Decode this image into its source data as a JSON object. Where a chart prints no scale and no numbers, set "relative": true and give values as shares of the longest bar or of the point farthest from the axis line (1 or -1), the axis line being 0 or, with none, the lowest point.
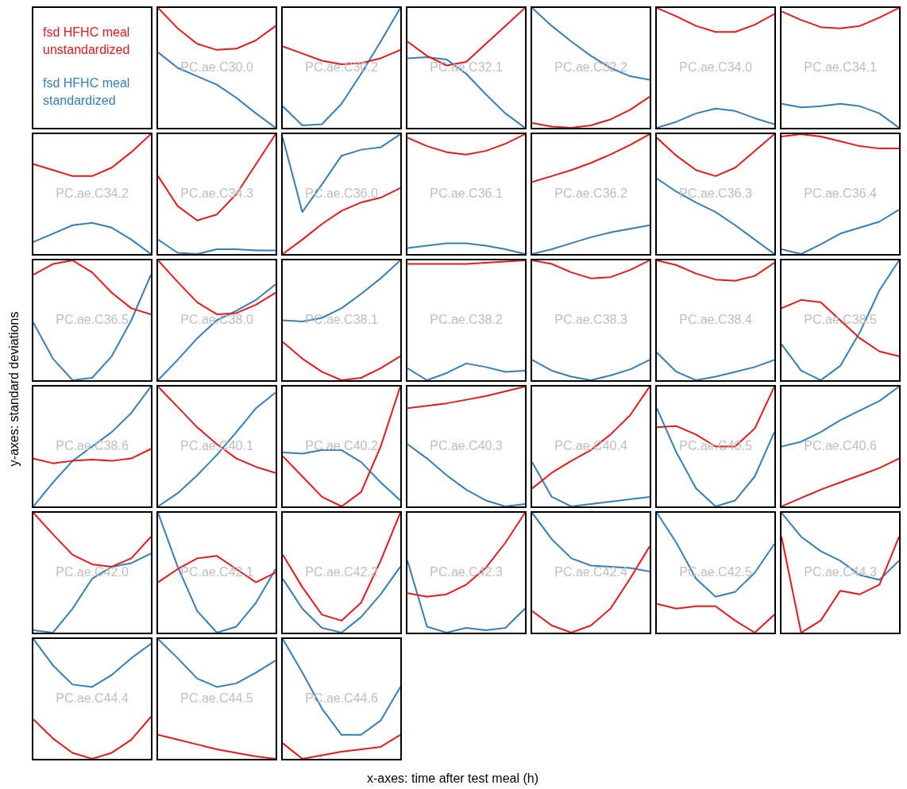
{
  "chart_data": [
    {
      "type": "line",
      "title": "PC.ae.C30.0",
      "relative": true,
      "legend": "left",
      "categories": [
        null,
        null,
        null,
        null,
        null,
        null,
        null
      ],
      "series": [
        {
          "name": "fsd HFHC meal\nunstandardized",
          "color": "#e41a1c",
          "values": [
            1,
            0.83,
            0.7,
            0.65,
            0.66,
            0.73,
            0.85
          ]
        },
        {
          "name": "fsd HFHC meal\nstandardized",
          "color": "#377eb8",
          "values": [
            0.63,
            0.5,
            0.43,
            0.36,
            0.25,
            0.12,
            0
          ]
        }
      ]
    },
    {
      "type": "line",
      "title": "PC.ae.C30.2",
      "relative": true,
      "categories": [
        null,
        null,
        null,
        null,
        null,
        null,
        null
      ],
      "series": [
        {
          "color": "#e41a1c",
          "values": [
            0.68,
            0.62,
            0.56,
            0.53,
            0.54,
            0.58,
            0.65
          ]
        },
        {
          "color": "#377eb8",
          "values": [
            0.18,
            0.02,
            0.03,
            0.2,
            0.45,
            0.72,
            1
          ]
        }
      ]
    },
    {
      "type": "line",
      "title": "PC.ae.C32.1",
      "relative": true,
      "categories": [
        null,
        null,
        null,
        null,
        null,
        null,
        null
      ],
      "series": [
        {
          "color": "#e41a1c",
          "values": [
            0.72,
            0.6,
            0.52,
            0.55,
            0.7,
            0.85,
            1
          ]
        },
        {
          "color": "#377eb8",
          "values": [
            0.58,
            0.59,
            0.57,
            0.45,
            0.28,
            0.12,
            0
          ]
        }
      ]
    },
    {
      "type": "line",
      "title": "PC.ae.C32.2",
      "relative": true,
      "categories": [
        null,
        null,
        null,
        null,
        null,
        null,
        null
      ],
      "series": [
        {
          "color": "#e41a1c",
          "values": [
            0.04,
            0.01,
            0,
            0.02,
            0.07,
            0.15,
            0.26
          ]
        },
        {
          "color": "#377eb8",
          "values": [
            1,
            0.85,
            0.72,
            0.6,
            0.5,
            0.43,
            0.4
          ]
        }
      ]
    },
    {
      "type": "line",
      "title": "PC.ae.C34.0",
      "relative": true,
      "categories": [
        null,
        null,
        null,
        null,
        null,
        null,
        null
      ],
      "series": [
        {
          "color": "#e41a1c",
          "values": [
            1,
            0.93,
            0.85,
            0.8,
            0.8,
            0.86,
            0.95
          ]
        },
        {
          "color": "#377eb8",
          "values": [
            0,
            0.05,
            0.12,
            0.16,
            0.14,
            0.08,
            0.03
          ]
        }
      ]
    },
    {
      "type": "line",
      "title": "PC.ae.C34.1",
      "relative": true,
      "categories": [
        null,
        null,
        null,
        null,
        null,
        null,
        null
      ],
      "series": [
        {
          "color": "#e41a1c",
          "values": [
            0.97,
            0.9,
            0.84,
            0.83,
            0.85,
            0.92,
            1
          ]
        },
        {
          "color": "#377eb8",
          "values": [
            0.2,
            0.17,
            0.18,
            0.2,
            0.18,
            0.12,
            0
          ]
        }
      ]
    },
    {
      "type": "line",
      "title": "PC.ae.C34.2",
      "relative": true,
      "categories": [
        null,
        null,
        null,
        null,
        null,
        null,
        null
      ],
      "series": [
        {
          "color": "#e41a1c",
          "values": [
            0.75,
            0.7,
            0.65,
            0.65,
            0.72,
            0.85,
            1
          ]
        },
        {
          "color": "#377eb8",
          "values": [
            0.1,
            0.17,
            0.24,
            0.26,
            0.22,
            0.12,
            0
          ]
        }
      ]
    },
    {
      "type": "line",
      "title": "PC.ae.C34.3",
      "relative": true,
      "categories": [
        null,
        null,
        null,
        null,
        null,
        null,
        null
      ],
      "series": [
        {
          "color": "#e41a1c",
          "values": [
            0.65,
            0.4,
            0.28,
            0.33,
            0.5,
            0.75,
            1
          ]
        },
        {
          "color": "#377eb8",
          "values": [
            0.12,
            0.01,
            0,
            0.04,
            0.04,
            0.03,
            0.03
          ]
        }
      ]
    },
    {
      "type": "line",
      "title": "PC.ae.C36.0",
      "relative": true,
      "categories": [
        null,
        null,
        null,
        null,
        null,
        null,
        null
      ],
      "series": [
        {
          "color": "#e41a1c",
          "values": [
            0,
            0.12,
            0.25,
            0.36,
            0.43,
            0.47,
            0.55
          ]
        },
        {
          "color": "#377eb8",
          "values": [
            0.97,
            0.35,
            0.58,
            0.82,
            0.87,
            0.89,
            1
          ]
        }
      ]
    },
    {
      "type": "line",
      "title": "PC.ae.C36.1",
      "relative": true,
      "categories": [
        null,
        null,
        null,
        null,
        null,
        null,
        null
      ],
      "series": [
        {
          "color": "#e41a1c",
          "values": [
            0.97,
            0.9,
            0.85,
            0.83,
            0.86,
            0.92,
            1
          ]
        },
        {
          "color": "#377eb8",
          "values": [
            0.05,
            0.07,
            0.09,
            0.09,
            0.07,
            0.04,
            0
          ]
        }
      ]
    },
    {
      "type": "line",
      "title": "PC.ae.C36.2",
      "relative": true,
      "categories": [
        null,
        null,
        null,
        null,
        null,
        null,
        null
      ],
      "series": [
        {
          "color": "#e41a1c",
          "values": [
            0.6,
            0.65,
            0.7,
            0.76,
            0.83,
            0.91,
            1
          ]
        },
        {
          "color": "#377eb8",
          "values": [
            0,
            0.04,
            0.09,
            0.14,
            0.18,
            0.21,
            0.24
          ]
        }
      ]
    },
    {
      "type": "line",
      "title": "PC.ae.C36.3",
      "relative": true,
      "categories": [
        null,
        null,
        null,
        null,
        null,
        null,
        null
      ],
      "series": [
        {
          "color": "#e41a1c",
          "values": [
            0.97,
            0.82,
            0.7,
            0.65,
            0.72,
            0.86,
            1
          ]
        },
        {
          "color": "#377eb8",
          "values": [
            0.63,
            0.52,
            0.43,
            0.35,
            0.24,
            0.12,
            0
          ]
        }
      ]
    },
    {
      "type": "line",
      "title": "PC.ae.C36.4",
      "relative": true,
      "categories": [
        null,
        null,
        null,
        null,
        null,
        null,
        null
      ],
      "series": [
        {
          "color": "#e41a1c",
          "values": [
            0.98,
            1,
            0.98,
            0.94,
            0.9,
            0.88,
            0.88
          ]
        },
        {
          "color": "#377eb8",
          "values": [
            0.04,
            0,
            0.08,
            0.17,
            0.22,
            0.27,
            0.37
          ]
        }
      ]
    },
    {
      "type": "line",
      "title": "PC.ae.C36.5",
      "relative": true,
      "categories": [
        null,
        null,
        null,
        null,
        null,
        null,
        null
      ],
      "series": [
        {
          "color": "#e41a1c",
          "values": [
            0.88,
            0.97,
            1,
            0.9,
            0.73,
            0.6,
            0.55
          ]
        },
        {
          "color": "#377eb8",
          "values": [
            0.48,
            0.18,
            0,
            0.02,
            0.2,
            0.5,
            0.88
          ]
        }
      ]
    },
    {
      "type": "line",
      "title": "PC.ae.C38.0",
      "relative": true,
      "categories": [
        null,
        null,
        null,
        null,
        null,
        null,
        null
      ],
      "series": [
        {
          "color": "#e41a1c",
          "values": [
            1,
            0.82,
            0.65,
            0.55,
            0.56,
            0.63,
            0.73
          ]
        },
        {
          "color": "#377eb8",
          "values": [
            0,
            0.17,
            0.35,
            0.5,
            0.58,
            0.67,
            0.8
          ]
        }
      ]
    },
    {
      "type": "line",
      "title": "PC.ae.C38.1",
      "relative": true,
      "categories": [
        null,
        null,
        null,
        null,
        null,
        null,
        null
      ],
      "series": [
        {
          "color": "#e41a1c",
          "values": [
            0.32,
            0.18,
            0.07,
            0,
            0.02,
            0.1,
            0.2
          ]
        },
        {
          "color": "#377eb8",
          "values": [
            0.5,
            0.49,
            0.52,
            0.6,
            0.72,
            0.85,
            1
          ]
        }
      ]
    },
    {
      "type": "line",
      "title": "PC.ae.C38.2",
      "relative": true,
      "categories": [
        null,
        null,
        null,
        null,
        null,
        null,
        null
      ],
      "series": [
        {
          "color": "#e41a1c",
          "values": [
            0.97,
            0.97,
            0.97,
            0.97,
            0.98,
            0.99,
            1
          ]
        },
        {
          "color": "#377eb8",
          "values": [
            0.1,
            0,
            0.06,
            0.14,
            0.11,
            0.07,
            0.08
          ]
        }
      ]
    },
    {
      "type": "line",
      "title": "PC.ae.C38.3",
      "relative": true,
      "categories": [
        null,
        null,
        null,
        null,
        null,
        null,
        null
      ],
      "series": [
        {
          "color": "#e41a1c",
          "values": [
            1,
            0.97,
            0.9,
            0.85,
            0.86,
            0.92,
            1
          ]
        },
        {
          "color": "#377eb8",
          "values": [
            0.17,
            0.08,
            0.03,
            0,
            0.04,
            0.09,
            0.17
          ]
        }
      ]
    },
    {
      "type": "line",
      "title": "PC.ae.C38.4",
      "relative": true,
      "categories": [
        null,
        null,
        null,
        null,
        null,
        null,
        null
      ],
      "series": [
        {
          "color": "#e41a1c",
          "values": [
            1,
            0.96,
            0.89,
            0.84,
            0.83,
            0.87,
            0.98
          ]
        },
        {
          "color": "#377eb8",
          "values": [
            0.23,
            0.07,
            0,
            0.03,
            0.07,
            0.11,
            0.17
          ]
        }
      ]
    },
    {
      "type": "line",
      "title": "PC.ae.C38.5",
      "relative": true,
      "categories": [
        null,
        null,
        null,
        null,
        null,
        null,
        null
      ],
      "series": [
        {
          "color": "#e41a1c",
          "values": [
            0.6,
            0.67,
            0.65,
            0.5,
            0.35,
            0.24,
            0.2
          ]
        },
        {
          "color": "#377eb8",
          "values": [
            0.3,
            0.08,
            0,
            0.12,
            0.4,
            0.75,
            1
          ]
        }
      ]
    },
    {
      "type": "line",
      "title": "PC.ae.C38.6",
      "relative": true,
      "categories": [
        null,
        null,
        null,
        null,
        null,
        null,
        null
      ],
      "series": [
        {
          "color": "#e41a1c",
          "values": [
            0.4,
            0.36,
            0.38,
            0.39,
            0.38,
            0.4,
            0.48
          ]
        },
        {
          "color": "#377eb8",
          "values": [
            0,
            0.2,
            0.38,
            0.5,
            0.62,
            0.78,
            1
          ]
        }
      ]
    },
    {
      "type": "line",
      "title": "PC.ae.C40.1",
      "relative": true,
      "categories": [
        null,
        null,
        null,
        null,
        null,
        null,
        null
      ],
      "series": [
        {
          "color": "#e41a1c",
          "values": [
            1,
            0.83,
            0.66,
            0.52,
            0.4,
            0.33,
            0.28
          ]
        },
        {
          "color": "#377eb8",
          "values": [
            0,
            0.11,
            0.26,
            0.43,
            0.62,
            0.82,
            0.95
          ]
        }
      ]
    },
    {
      "type": "line",
      "title": "PC.ae.C40.2",
      "relative": true,
      "categories": [
        null,
        null,
        null,
        null,
        null,
        null,
        null
      ],
      "series": [
        {
          "color": "#e41a1c",
          "values": [
            0.42,
            0.25,
            0.08,
            0,
            0.12,
            0.5,
            1
          ]
        },
        {
          "color": "#377eb8",
          "values": [
            0.45,
            0.44,
            0.47,
            0.47,
            0.37,
            0.2,
            0.05
          ]
        }
      ]
    },
    {
      "type": "line",
      "title": "PC.ae.C40.3",
      "relative": true,
      "categories": [
        null,
        null,
        null,
        null,
        null,
        null,
        null
      ],
      "series": [
        {
          "color": "#e41a1c",
          "values": [
            0.82,
            0.84,
            0.86,
            0.89,
            0.92,
            0.96,
            1
          ]
        },
        {
          "color": "#377eb8",
          "values": [
            0.52,
            0.4,
            0.26,
            0.14,
            0.05,
            0,
            0.02
          ]
        }
      ]
    },
    {
      "type": "line",
      "title": "PC.ae.C40.4",
      "relative": true,
      "categories": [
        null,
        null,
        null,
        null,
        null,
        null,
        null
      ],
      "series": [
        {
          "color": "#e41a1c",
          "values": [
            0.15,
            0.28,
            0.38,
            0.47,
            0.6,
            0.76,
            1
          ]
        },
        {
          "color": "#377eb8",
          "values": [
            0.37,
            0.08,
            0,
            0.02,
            0.04,
            0.06,
            0.08
          ]
        }
      ]
    },
    {
      "type": "line",
      "title": "PC.ae.C40.5",
      "relative": true,
      "categories": [
        null,
        null,
        null,
        null,
        null,
        null,
        null
      ],
      "series": [
        {
          "color": "#e41a1c",
          "values": [
            0.66,
            0.67,
            0.6,
            0.5,
            0.5,
            0.65,
            1
          ]
        },
        {
          "color": "#377eb8",
          "values": [
            0.82,
            0.45,
            0.15,
            0,
            0.05,
            0.25,
            0.62
          ]
        }
      ]
    },
    {
      "type": "line",
      "title": "PC.ae.C40.6",
      "relative": true,
      "categories": [
        null,
        null,
        null,
        null,
        null,
        null,
        null
      ],
      "series": [
        {
          "color": "#e41a1c",
          "values": [
            0,
            0.07,
            0.14,
            0.2,
            0.26,
            0.32,
            0.4
          ]
        },
        {
          "color": "#377eb8",
          "values": [
            0.5,
            0.54,
            0.62,
            0.72,
            0.8,
            0.88,
            1
          ]
        }
      ]
    },
    {
      "type": "line",
      "title": "PC.ae.C42.0",
      "relative": true,
      "categories": [
        null,
        null,
        null,
        null,
        null,
        null,
        null
      ],
      "series": [
        {
          "color": "#e41a1c",
          "values": [
            1,
            0.82,
            0.65,
            0.57,
            0.55,
            0.62,
            0.8
          ]
        },
        {
          "color": "#377eb8",
          "values": [
            0.02,
            0,
            0.2,
            0.45,
            0.55,
            0.58,
            0.66
          ]
        }
      ]
    },
    {
      "type": "line",
      "title": "PC.ae.C42.1",
      "relative": true,
      "categories": [
        null,
        null,
        null,
        null,
        null,
        null,
        null
      ],
      "series": [
        {
          "color": "#e41a1c",
          "values": [
            0.42,
            0.53,
            0.62,
            0.64,
            0.53,
            0.42,
            0.5
          ]
        },
        {
          "color": "#377eb8",
          "values": [
            1,
            0.55,
            0.18,
            0,
            0.05,
            0.25,
            0.53
          ]
        }
      ]
    },
    {
      "type": "line",
      "title": "PC.ae.C42.2",
      "relative": true,
      "categories": [
        null,
        null,
        null,
        null,
        null,
        null,
        null
      ],
      "series": [
        {
          "color": "#e41a1c",
          "values": [
            0.65,
            0.38,
            0.15,
            0.1,
            0.25,
            0.6,
            1
          ]
        },
        {
          "color": "#377eb8",
          "values": [
            0.45,
            0.2,
            0.04,
            0,
            0.13,
            0.32,
            0.55
          ]
        }
      ]
    },
    {
      "type": "line",
      "title": "PC.ae.C42.3",
      "relative": true,
      "categories": [
        null,
        null,
        null,
        null,
        null,
        null,
        null
      ],
      "series": [
        {
          "color": "#e41a1c",
          "values": [
            0.33,
            0.3,
            0.32,
            0.4,
            0.54,
            0.75,
            1
          ]
        },
        {
          "color": "#377eb8",
          "values": [
            0.6,
            0.05,
            0,
            0.04,
            0.02,
            0.04,
            0.2
          ]
        }
      ]
    },
    {
      "type": "line",
      "title": "PC.ae.C42.4",
      "relative": true,
      "categories": [
        null,
        null,
        null,
        null,
        null,
        null,
        null
      ],
      "series": [
        {
          "color": "#e41a1c",
          "values": [
            0.18,
            0.06,
            0,
            0.06,
            0.2,
            0.45,
            0.72
          ]
        },
        {
          "color": "#377eb8",
          "values": [
            1,
            0.78,
            0.62,
            0.56,
            0.55,
            0.54,
            0.51
          ]
        }
      ]
    },
    {
      "type": "line",
      "title": "PC.ae.C42.5",
      "relative": true,
      "categories": [
        null,
        null,
        null,
        null,
        null,
        null,
        null
      ],
      "series": [
        {
          "color": "#e41a1c",
          "values": [
            0.24,
            0.2,
            0.22,
            0.22,
            0.1,
            0,
            0.15
          ]
        },
        {
          "color": "#377eb8",
          "values": [
            1,
            0.75,
            0.45,
            0.3,
            0.34,
            0.5,
            0.74
          ]
        }
      ]
    },
    {
      "type": "line",
      "title": "PC.ae.C44.3",
      "relative": true,
      "categories": [
        null,
        null,
        null,
        null,
        null,
        null,
        null
      ],
      "series": [
        {
          "color": "#e41a1c",
          "values": [
            0.8,
            0,
            0.1,
            0.35,
            0.32,
            0.4,
            0.8
          ]
        },
        {
          "color": "#377eb8",
          "values": [
            1,
            0.8,
            0.68,
            0.6,
            0.48,
            0.44,
            0.6
          ]
        }
      ]
    },
    {
      "type": "line",
      "title": "PC.ae.C44.4",
      "relative": true,
      "categories": [
        null,
        null,
        null,
        null,
        null,
        null,
        null
      ],
      "series": [
        {
          "color": "#e41a1c",
          "values": [
            0.33,
            0.17,
            0.05,
            0,
            0.05,
            0.16,
            0.35
          ]
        },
        {
          "color": "#377eb8",
          "values": [
            1,
            0.78,
            0.62,
            0.6,
            0.7,
            0.84,
            0.96
          ]
        }
      ]
    },
    {
      "type": "line",
      "title": "PC.ae.C44.5",
      "relative": true,
      "categories": [
        null,
        null,
        null,
        null,
        null,
        null,
        null
      ],
      "series": [
        {
          "color": "#e41a1c",
          "values": [
            0.2,
            0.16,
            0.12,
            0.08,
            0.05,
            0.02,
            0
          ]
        },
        {
          "color": "#377eb8",
          "values": [
            1,
            0.84,
            0.67,
            0.6,
            0.63,
            0.72,
            0.82
          ]
        }
      ]
    },
    {
      "type": "line",
      "title": "PC.ae.C44.6",
      "relative": true,
      "categories": [
        null,
        null,
        null,
        null,
        null,
        null,
        null
      ],
      "series": [
        {
          "color": "#e41a1c",
          "values": [
            0.13,
            0,
            0.03,
            0.06,
            0.08,
            0.1,
            0.2
          ]
        },
        {
          "color": "#377eb8",
          "values": [
            1,
            0.72,
            0.42,
            0.2,
            0.2,
            0.32,
            0.6
          ]
        }
      ]
    },
    {
      "type": "other",
      "annotations": [
        "x-axes: time after test meal (h)",
        "y-axes: standard deviations"
      ]
    }
  ]
}
